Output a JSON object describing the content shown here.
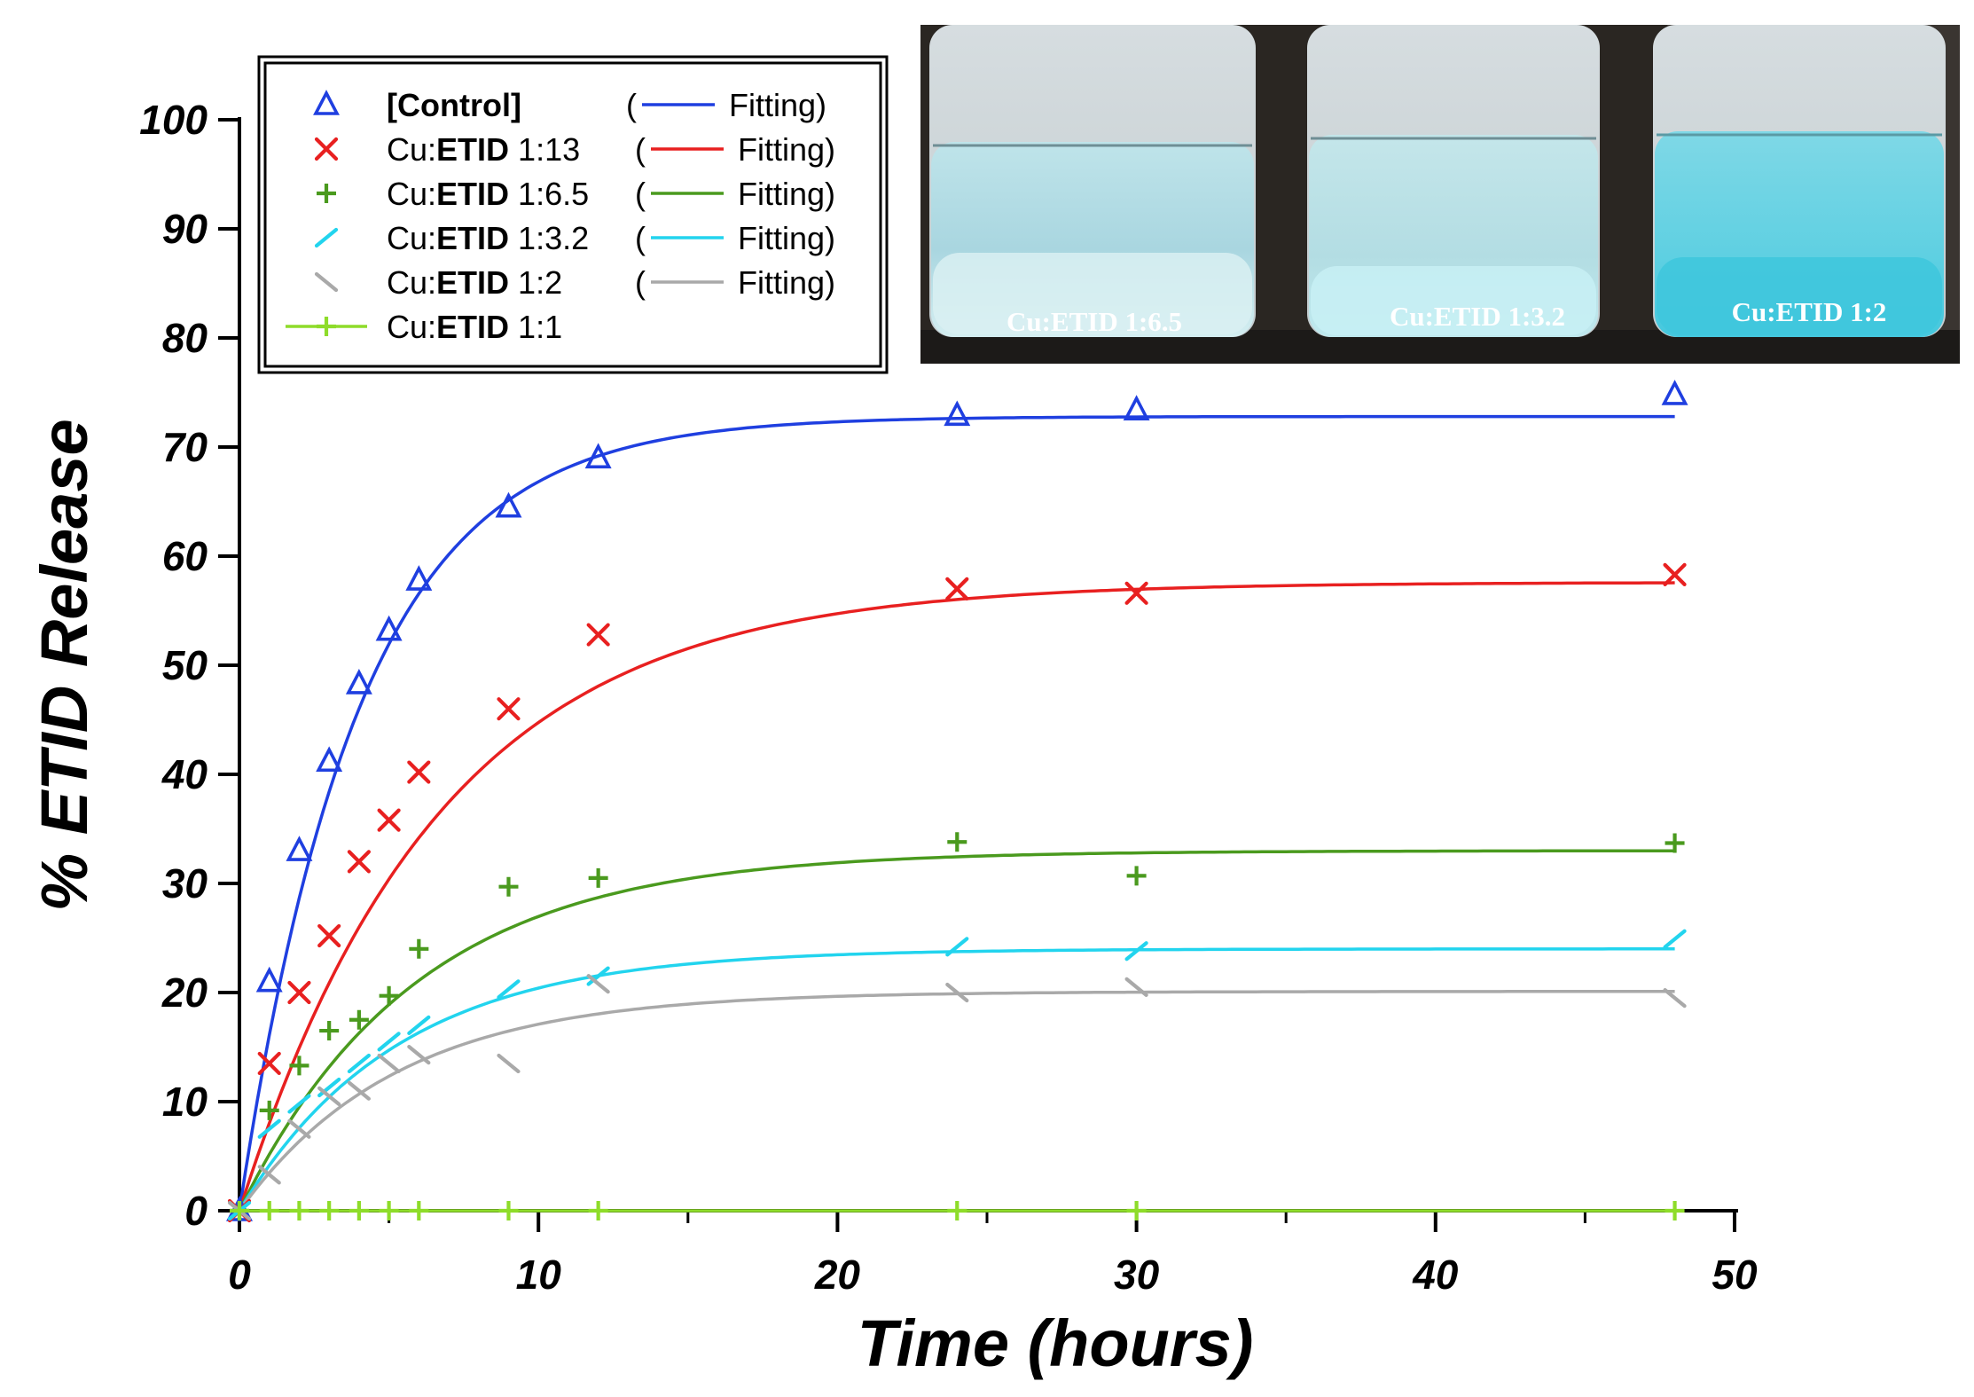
{
  "chart_data": {
    "type": "scatter",
    "xlabel": "Time (hours)",
    "ylabel": "% ETID Release",
    "xlim": [
      0,
      50
    ],
    "ylim": [
      0,
      100
    ],
    "x_ticks": [
      "0",
      "10",
      "20",
      "30",
      "40",
      "50"
    ],
    "y_ticks": [
      "0",
      "10",
      "20",
      "30",
      "40",
      "50",
      "60",
      "70",
      "80",
      "90",
      "100"
    ],
    "grid": false,
    "legend_position": "top-left",
    "x": [
      0,
      1,
      2,
      3,
      4,
      5,
      6,
      9,
      12,
      24,
      30,
      48
    ],
    "series": [
      {
        "name_parts": [
          "[Control]",
          ""
        ],
        "fit_label": "Fitting",
        "marker": "triangle",
        "color": "#1f3fe0",
        "fit": {
          "plateau": 72.8,
          "k": 0.25
        },
        "values": [
          0,
          21.0,
          33.0,
          41.2,
          48.3,
          53.2,
          57.8,
          64.5,
          69.0,
          72.9,
          73.4,
          74.8
        ]
      },
      {
        "name_parts": [
          "Cu:",
          "ETID",
          " 1:13"
        ],
        "fit_label": "Fitting",
        "marker": "x",
        "color": "#e82020",
        "fit": {
          "plateau": 57.6,
          "k": 0.15
        },
        "values": [
          0,
          13.5,
          20.0,
          25.2,
          32.0,
          35.8,
          40.2,
          46.0,
          52.8,
          57.0,
          56.6,
          58.3
        ]
      },
      {
        "name_parts": [
          "Cu:",
          "ETID",
          " 1:6.5"
        ],
        "fit_label": "Fitting",
        "marker": "plus",
        "color": "#4a9a1e",
        "fit": {
          "plateau": 33.0,
          "k": 0.17
        },
        "values": [
          0,
          9.2,
          13.3,
          16.5,
          17.5,
          19.7,
          24.0,
          29.7,
          30.5,
          33.8,
          30.7,
          33.7
        ]
      },
      {
        "name_parts": [
          "Cu:",
          "ETID",
          " 1:3.2"
        ],
        "fit_label": "Fitting",
        "marker": "slash",
        "color": "#22d4ee",
        "fit": {
          "plateau": 24.0,
          "k": 0.19
        },
        "values": [
          0,
          7.5,
          9.8,
          11.3,
          13.5,
          15.5,
          17.0,
          20.3,
          21.5,
          24.2,
          23.8,
          24.9
        ]
      },
      {
        "name_parts": [
          "Cu:",
          "ETID",
          " 1:2"
        ],
        "fit_label": "Fitting",
        "marker": "backslash",
        "color": "#a9a9a9",
        "fit": {
          "plateau": 20.1,
          "k": 0.19
        },
        "values": [
          0,
          3.3,
          7.5,
          10.5,
          11.0,
          13.5,
          14.3,
          13.5,
          20.8,
          20.0,
          20.5,
          19.5
        ]
      },
      {
        "name_parts": [
          "Cu:",
          "ETID",
          " 1:1"
        ],
        "fit_label": "",
        "marker": "plus-line",
        "color": "#8edc2a",
        "fit": null,
        "values": [
          0,
          0,
          0,
          0,
          0,
          0,
          0,
          0,
          0,
          0,
          0,
          0
        ]
      }
    ],
    "inset_photo": {
      "labels": [
        "Cu:ETID 1:6.5",
        "Cu:ETID 1:3.2",
        "Cu:ETID 1:2"
      ]
    }
  }
}
